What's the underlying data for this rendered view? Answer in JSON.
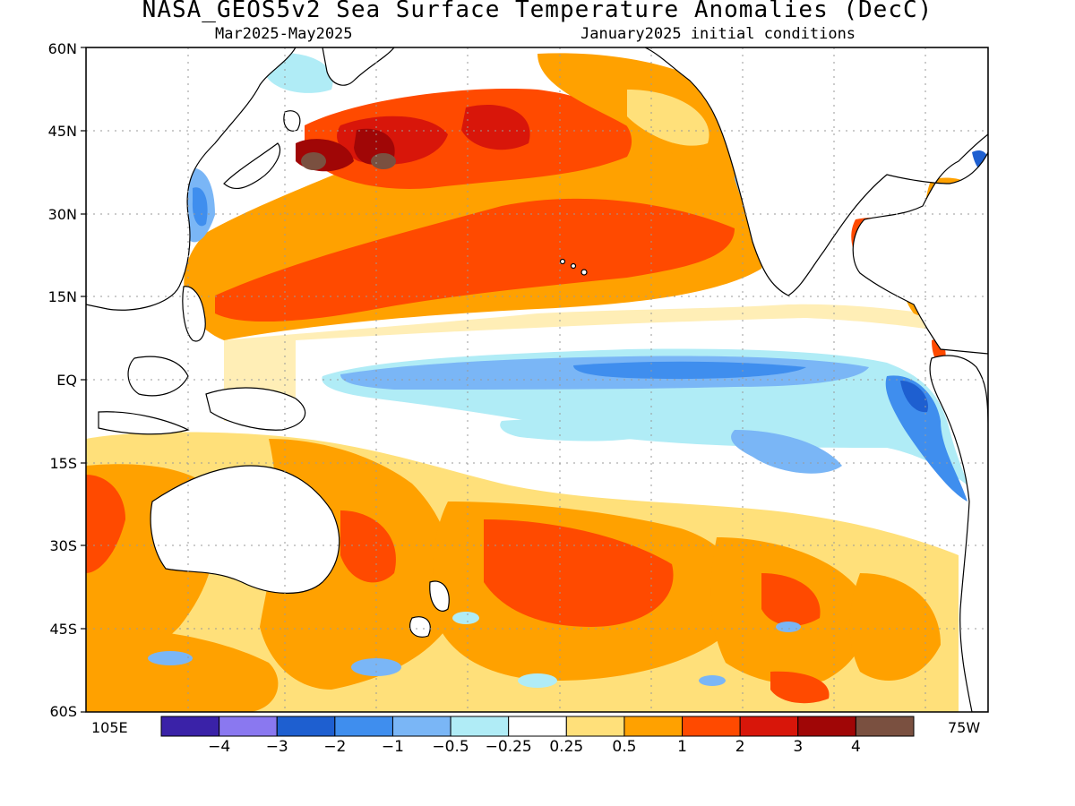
{
  "title": "NASA_GEOS5v2 Sea Surface Temperature Anomalies (DecC)",
  "subtitle_left": "Mar2025-May2025",
  "subtitle_right": "January2025 initial conditions",
  "lat_labels": [
    "60N",
    "45N",
    "30N",
    "15N",
    "EQ",
    "15S",
    "30S",
    "45S",
    "60S"
  ],
  "lon_labels": {
    "west_edge": "105E",
    "east_edge": "75W"
  },
  "colorbar": {
    "colors": [
      "#3a22a8",
      "#8a78f0",
      "#1e5fd0",
      "#3f8eee",
      "#7ab6f6",
      "#b0ecf6",
      "#ffffff",
      "#ffe07a",
      "#ffa100",
      "#ff4a00",
      "#d8160a",
      "#a00606",
      "#7a5040"
    ],
    "tick_labels": [
      "-4",
      "-3",
      "-2",
      "-1",
      "-0.5",
      "-0.25",
      "0.25",
      "0.5",
      "1",
      "2",
      "3",
      "4"
    ]
  },
  "chart_data": {
    "type": "heatmap",
    "title": "NASA_GEOS5v2 Sea Surface Temperature Anomalies (DecC)",
    "subtitle": "Mar2025-May2025 / January2025 initial conditions",
    "variable": "sea surface temperature anomaly",
    "units": "DecC",
    "lat_range": [
      "60S",
      "60N"
    ],
    "lon_range": [
      "105E",
      "75W"
    ],
    "levels": [
      -4,
      -3,
      -2,
      -1,
      -0.5,
      -0.25,
      0.25,
      0.5,
      1,
      2,
      3,
      4
    ],
    "grid": true,
    "legend": "bottom horizontal colorbar"
  }
}
